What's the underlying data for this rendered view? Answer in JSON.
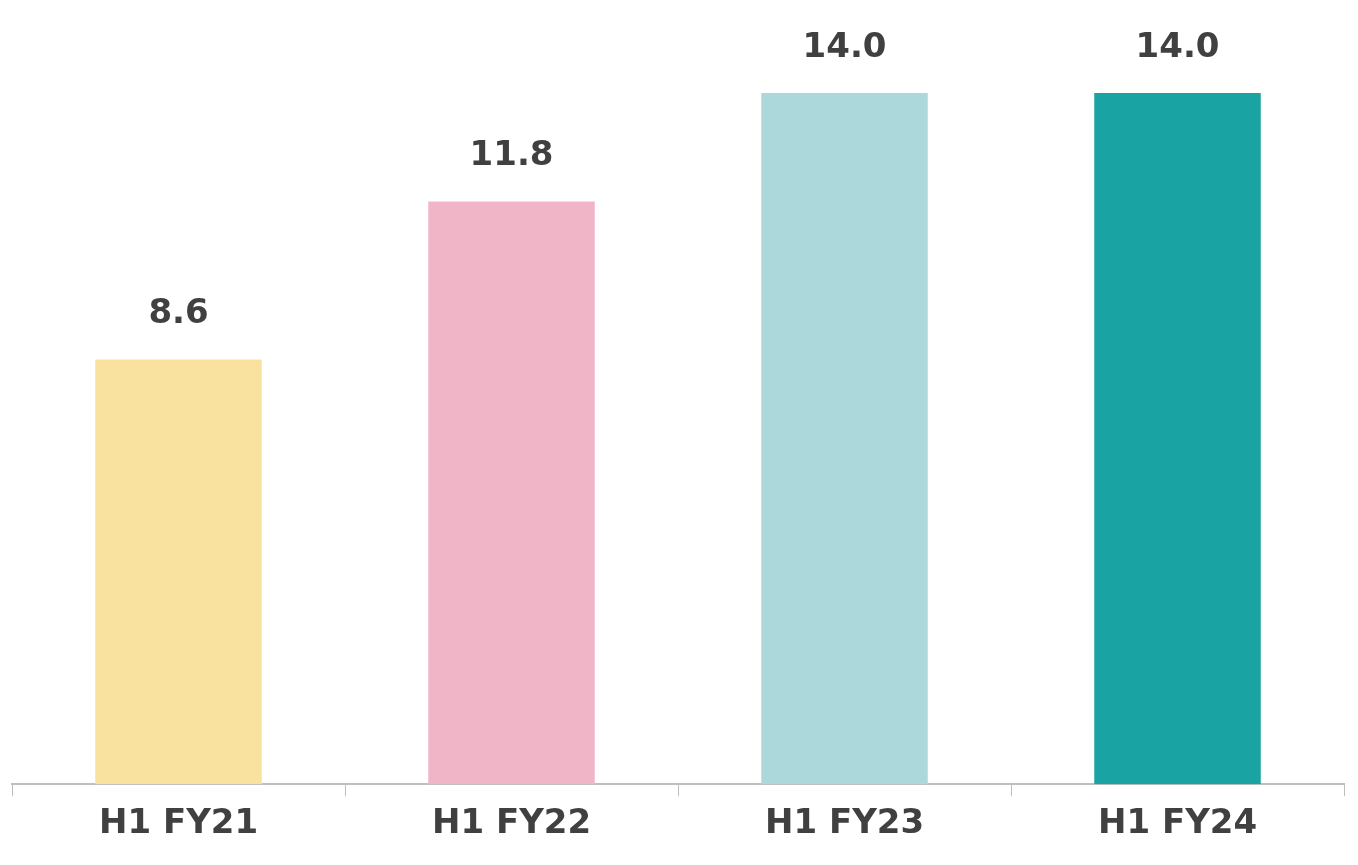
{
  "chart_data": {
    "type": "bar",
    "categories": [
      "H1 FY21",
      "H1 FY22",
      "H1 FY23",
      "H1 FY24"
    ],
    "values": [
      8.6,
      11.8,
      14.0,
      14.0
    ],
    "colors": [
      "#f9e19f",
      "#f0b6c8",
      "#acd8dc",
      "#1aa3a3"
    ],
    "value_labels": [
      "8.6",
      "11.8",
      "14.0",
      "14.0"
    ],
    "grid": false,
    "legend": false
  }
}
